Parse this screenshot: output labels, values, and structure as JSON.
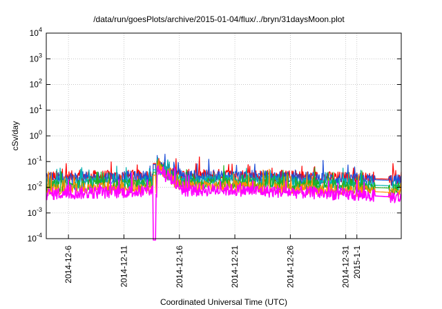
{
  "chart_data": {
    "type": "line",
    "title": "/data/run/goesPlots/archive/2015-01-04/flux/../bryn/31daysMoon.plot",
    "xlabel": "Coordinated Universal Time (UTC)",
    "ylabel": "cSv/day",
    "yscale": "log",
    "ylim": [
      0.0001,
      10000
    ],
    "y_ticks": [
      {
        "base": "10",
        "exp": "-4",
        "value": 0.0001
      },
      {
        "base": "10",
        "exp": "-3",
        "value": 0.001
      },
      {
        "base": "10",
        "exp": "-2",
        "value": 0.01
      },
      {
        "base": "10",
        "exp": "-1",
        "value": 0.1
      },
      {
        "base": "10",
        "exp": "0",
        "value": 1
      },
      {
        "base": "10",
        "exp": "1",
        "value": 10
      },
      {
        "base": "10",
        "exp": "2",
        "value": 100
      },
      {
        "base": "10",
        "exp": "3",
        "value": 1000
      },
      {
        "base": "10",
        "exp": "4",
        "value": 10000
      }
    ],
    "xlim": [
      "2014-12-04",
      "2015-01-05"
    ],
    "x_ticks": [
      "2014-12-6",
      "2014-12-11",
      "2014-12-16",
      "2014-12-21",
      "2014-12-26",
      "2014-12-31",
      "2015-1-1"
    ],
    "x_tick_dates": [
      "2014-12-06",
      "2014-12-11",
      "2014-12-16",
      "2014-12-21",
      "2014-12-26",
      "2014-12-31",
      "2015-01-01"
    ],
    "grid": true,
    "series": [
      {
        "color": "#ff0000",
        "level_start": 0.025,
        "level_mid": 0.03,
        "level_end": 0.02
      },
      {
        "color": "#1f4fd8",
        "level_start": 0.022,
        "level_mid": 0.028,
        "level_end": 0.018
      },
      {
        "color": "#00b0b0",
        "level_start": 0.013,
        "level_mid": 0.018,
        "level_end": 0.011
      },
      {
        "color": "#20b020",
        "level_start": 0.011,
        "level_mid": 0.014,
        "level_end": 0.009
      },
      {
        "color": "#ff8c00",
        "level_start": 0.008,
        "level_mid": 0.011,
        "level_end": 0.006
      },
      {
        "color": "#ff00ff",
        "level_start": 0.0055,
        "level_mid": 0.008,
        "level_end": 0.004
      }
    ],
    "event": {
      "date": "2014-12-14",
      "peak": 0.2,
      "dropout_start": "2014-12-13.6",
      "dropout_end": "2014-12-13.9"
    }
  }
}
